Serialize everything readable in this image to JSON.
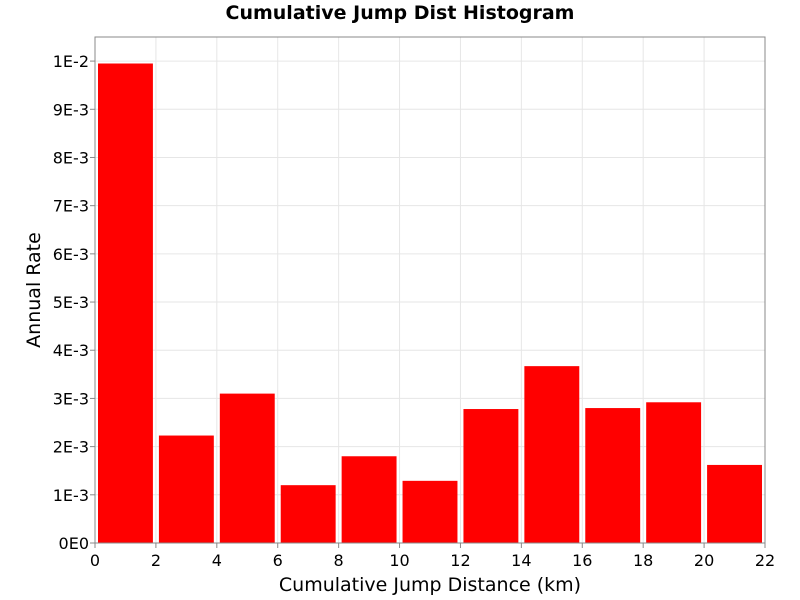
{
  "chart_data": {
    "type": "bar",
    "title": "Cumulative Jump Dist Histogram",
    "xlabel": "Cumulative Jump Distance (km)",
    "ylabel": "Annual Rate",
    "xlim": [
      0,
      22
    ],
    "ylim": [
      0,
      0.0105
    ],
    "x_ticks": [
      0,
      2,
      4,
      6,
      8,
      10,
      12,
      14,
      16,
      18,
      20,
      22
    ],
    "x_tick_labels": [
      "0",
      "2",
      "4",
      "6",
      "8",
      "10",
      "12",
      "14",
      "16",
      "18",
      "20",
      "22"
    ],
    "y_ticks": [
      0,
      0.001,
      0.002,
      0.003,
      0.004,
      0.005,
      0.006,
      0.007,
      0.008,
      0.009,
      0.01
    ],
    "y_tick_labels": [
      "0E0",
      "1E-3",
      "2E-3",
      "3E-3",
      "4E-3",
      "5E-3",
      "6E-3",
      "7E-3",
      "8E-3",
      "9E-3",
      "1E-2"
    ],
    "bar_width": 2,
    "x": [
      1,
      3,
      5,
      7,
      9,
      11,
      13,
      15,
      17,
      19,
      21
    ],
    "values": [
      0.00995,
      0.00223,
      0.0031,
      0.0012,
      0.0018,
      0.00129,
      0.00278,
      0.00367,
      0.0028,
      0.00292,
      0.00162
    ],
    "bar_color": "#ff0000",
    "grid": true
  }
}
